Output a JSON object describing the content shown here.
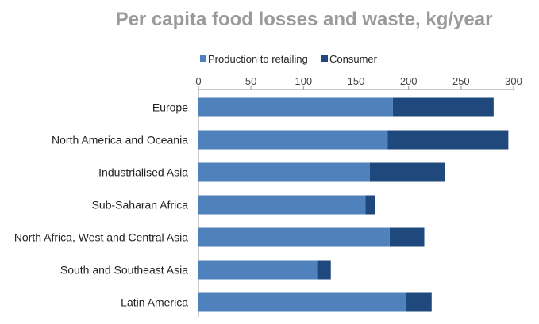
{
  "chart_data": {
    "type": "bar",
    "orientation": "horizontal",
    "stacked": true,
    "title": "Per capita food losses and waste, kg/year",
    "categories": [
      "Europe",
      "North America and Oceania",
      "Industrialised Asia",
      "Sub-Saharan Africa",
      "North Africa, West and Central Asia",
      "South and Southeast Asia",
      "Latin America"
    ],
    "series": [
      {
        "name": "Production to retailing",
        "color": "#4f81bd",
        "values": [
          185,
          180,
          163,
          159,
          182,
          113,
          198
        ]
      },
      {
        "name": "Consumer",
        "color": "#1f497d",
        "values": [
          96,
          115,
          72,
          9,
          33,
          13,
          24
        ]
      }
    ],
    "xlim": [
      0,
      300
    ],
    "xticks": [
      "0",
      "50",
      "100",
      "150",
      "200",
      "250",
      "300"
    ],
    "xaxis_position": "top",
    "legend_position": "top",
    "grid": false
  }
}
